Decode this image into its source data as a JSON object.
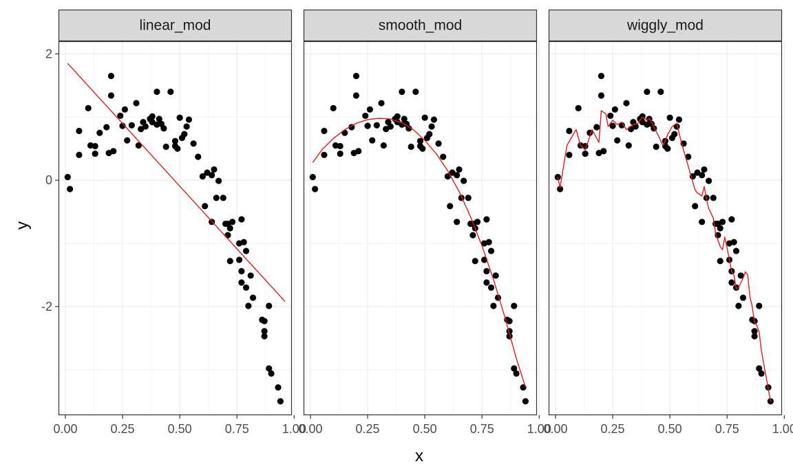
{
  "chart_data": {
    "type": "scatter",
    "facets": [
      "linear_mod",
      "smooth_mod",
      "wiggly_mod"
    ],
    "xlabel": "x",
    "ylabel": "y",
    "xlim": [
      -0.03,
      0.99
    ],
    "ylim": [
      -3.72,
      2.2
    ],
    "x_ticks": [
      0.0,
      0.25,
      0.5,
      0.75,
      1.0
    ],
    "x_tick_labels": [
      "0.00",
      "0.25",
      "0.50",
      "0.75",
      "1.00"
    ],
    "y_ticks": [
      -2,
      0,
      2
    ],
    "y_tick_labels": [
      "-2",
      "0",
      "2"
    ],
    "grid": true,
    "colors": {
      "points": "#000000",
      "fit_line": "#e41a1c",
      "strip_fill": "#d9d9d9",
      "panel_border": "#333333",
      "grid_major": "#ebebeb",
      "grid_minor": "#f5f5f5"
    },
    "points": [
      [
        0.01,
        0.05
      ],
      [
        0.02,
        -0.14
      ],
      [
        0.06,
        0.78
      ],
      [
        0.06,
        0.4
      ],
      [
        0.1,
        1.14
      ],
      [
        0.11,
        0.55
      ],
      [
        0.13,
        0.42
      ],
      [
        0.13,
        0.54
      ],
      [
        0.15,
        0.75
      ],
      [
        0.18,
        0.84
      ],
      [
        0.19,
        0.43
      ],
      [
        0.2,
        1.34
      ],
      [
        0.2,
        1.65
      ],
      [
        0.21,
        0.46
      ],
      [
        0.24,
        1.02
      ],
      [
        0.25,
        0.86
      ],
      [
        0.26,
        1.12
      ],
      [
        0.27,
        0.63
      ],
      [
        0.29,
        0.87
      ],
      [
        0.31,
        1.22
      ],
      [
        0.32,
        0.55
      ],
      [
        0.33,
        0.81
      ],
      [
        0.34,
        0.92
      ],
      [
        0.35,
        0.85
      ],
      [
        0.37,
        0.97
      ],
      [
        0.38,
        1.01
      ],
      [
        0.38,
        0.92
      ],
      [
        0.4,
        1.4
      ],
      [
        0.4,
        0.88
      ],
      [
        0.41,
        0.97
      ],
      [
        0.42,
        0.89
      ],
      [
        0.43,
        0.82
      ],
      [
        0.44,
        0.53
      ],
      [
        0.46,
        1.4
      ],
      [
        0.48,
        0.54
      ],
      [
        0.48,
        0.62
      ],
      [
        0.49,
        0.5
      ],
      [
        0.5,
        0.99
      ],
      [
        0.51,
        0.67
      ],
      [
        0.52,
        0.73
      ],
      [
        0.53,
        0.85
      ],
      [
        0.54,
        0.96
      ],
      [
        0.56,
        0.58
      ],
      [
        0.58,
        0.37
      ],
      [
        0.6,
        0.06
      ],
      [
        0.61,
        -0.41
      ],
      [
        0.62,
        0.12
      ],
      [
        0.64,
        -0.66
      ],
      [
        0.64,
        0.08
      ],
      [
        0.65,
        0.17
      ],
      [
        0.66,
        -0.28
      ],
      [
        0.67,
        -0.01
      ],
      [
        0.69,
        -0.28
      ],
      [
        0.7,
        -0.69
      ],
      [
        0.71,
        -0.69
      ],
      [
        0.71,
        -0.87
      ],
      [
        0.72,
        -0.76
      ],
      [
        0.72,
        -1.28
      ],
      [
        0.73,
        -0.66
      ],
      [
        0.76,
        -1.0
      ],
      [
        0.76,
        -1.26
      ],
      [
        0.77,
        -1.44
      ],
      [
        0.77,
        -1.62
      ],
      [
        0.77,
        -0.62
      ],
      [
        0.78,
        -0.98
      ],
      [
        0.79,
        -1.7
      ],
      [
        0.79,
        -1.12
      ],
      [
        0.8,
        -1.99
      ],
      [
        0.81,
        -1.51
      ],
      [
        0.82,
        -1.86
      ],
      [
        0.86,
        -2.21
      ],
      [
        0.87,
        -2.23
      ],
      [
        0.87,
        -2.39
      ],
      [
        0.87,
        -2.47
      ],
      [
        0.89,
        -1.99
      ],
      [
        0.89,
        -2.98
      ],
      [
        0.9,
        -3.06
      ],
      [
        0.93,
        -3.28
      ],
      [
        0.94,
        -3.5
      ]
    ],
    "series": [
      {
        "facet": "linear_mod",
        "x": [
          0.01,
          0.96
        ],
        "y": [
          1.85,
          -1.92
        ]
      },
      {
        "facet": "smooth_mod",
        "x": [
          0.01,
          0.05,
          0.1,
          0.15,
          0.2,
          0.25,
          0.3,
          0.35,
          0.4,
          0.45,
          0.5,
          0.55,
          0.6,
          0.65,
          0.7,
          0.75,
          0.8,
          0.85,
          0.9,
          0.94
        ],
        "y": [
          0.28,
          0.48,
          0.66,
          0.8,
          0.9,
          0.96,
          0.98,
          0.97,
          0.91,
          0.8,
          0.63,
          0.42,
          0.15,
          -0.18,
          -0.58,
          -1.04,
          -1.57,
          -2.17,
          -2.82,
          -3.28
        ]
      },
      {
        "facet": "wiggly_mod",
        "x": [
          0.01,
          0.02,
          0.05,
          0.09,
          0.11,
          0.13,
          0.16,
          0.19,
          0.2,
          0.22,
          0.23,
          0.25,
          0.27,
          0.29,
          0.31,
          0.34,
          0.36,
          0.38,
          0.4,
          0.41,
          0.43,
          0.45,
          0.47,
          0.48,
          0.49,
          0.51,
          0.53,
          0.55,
          0.57,
          0.59,
          0.61,
          0.62,
          0.64,
          0.65,
          0.66,
          0.67,
          0.69,
          0.7,
          0.72,
          0.73,
          0.74,
          0.76,
          0.77,
          0.78,
          0.79,
          0.8,
          0.82,
          0.83,
          0.84,
          0.85,
          0.86,
          0.87,
          0.88,
          0.89,
          0.9,
          0.92,
          0.94
        ],
        "y": [
          0.05,
          -0.12,
          0.55,
          0.8,
          0.55,
          0.48,
          0.8,
          0.6,
          1.1,
          1.05,
          0.85,
          0.95,
          0.88,
          0.92,
          0.8,
          0.88,
          0.9,
          1.0,
          0.95,
          0.98,
          0.85,
          0.7,
          0.55,
          0.62,
          0.72,
          0.85,
          0.9,
          0.6,
          0.35,
          0.1,
          -0.15,
          -0.2,
          -0.25,
          -0.1,
          -0.3,
          -0.45,
          -0.6,
          -0.85,
          -1.05,
          -1.1,
          -0.9,
          -1.25,
          -1.45,
          -1.5,
          -1.72,
          -1.7,
          -1.55,
          -1.45,
          -1.5,
          -1.85,
          -2.0,
          -2.25,
          -2.3,
          -2.4,
          -2.7,
          -3.1,
          -3.5
        ]
      }
    ]
  }
}
